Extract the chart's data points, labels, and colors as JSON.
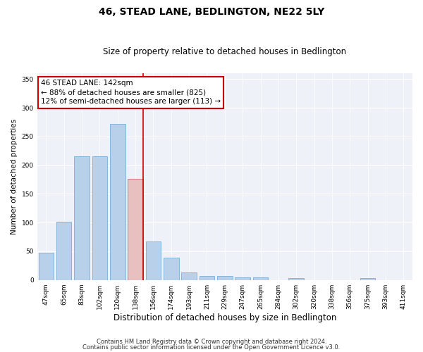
{
  "title": "46, STEAD LANE, BEDLINGTON, NE22 5LY",
  "subtitle": "Size of property relative to detached houses in Bedlington",
  "xlabel": "Distribution of detached houses by size in Bedlington",
  "ylabel": "Number of detached properties",
  "categories": [
    "47sqm",
    "65sqm",
    "83sqm",
    "102sqm",
    "120sqm",
    "138sqm",
    "156sqm",
    "174sqm",
    "193sqm",
    "211sqm",
    "229sqm",
    "247sqm",
    "265sqm",
    "284sqm",
    "302sqm",
    "320sqm",
    "338sqm",
    "356sqm",
    "375sqm",
    "393sqm",
    "411sqm"
  ],
  "values": [
    47,
    101,
    216,
    216,
    272,
    176,
    67,
    39,
    13,
    7,
    7,
    5,
    4,
    0,
    3,
    0,
    0,
    0,
    3,
    0,
    0
  ],
  "bar_color": "#b8d0ea",
  "bar_edge_color": "#7aaed6",
  "highlight_index": 5,
  "highlight_bar_color": "#e8c0c0",
  "highlight_bar_edge_color": "#cc6666",
  "vline_color": "#cc0000",
  "annotation_text": "46 STEAD LANE: 142sqm\n← 88% of detached houses are smaller (825)\n12% of semi-detached houses are larger (113) →",
  "annotation_box_facecolor": "#ffffff",
  "annotation_box_edgecolor": "#cc0000",
  "ylim": [
    0,
    360
  ],
  "yticks": [
    0,
    50,
    100,
    150,
    200,
    250,
    300,
    350
  ],
  "footnote1": "Contains HM Land Registry data © Crown copyright and database right 2024.",
  "footnote2": "Contains public sector information licensed under the Open Government Licence v3.0.",
  "bg_color": "#eef2f8",
  "title_fontsize": 10,
  "subtitle_fontsize": 8.5,
  "xlabel_fontsize": 8.5,
  "ylabel_fontsize": 7.5,
  "tick_fontsize": 6.5,
  "annotation_fontsize": 7.5,
  "footnote_fontsize": 6
}
